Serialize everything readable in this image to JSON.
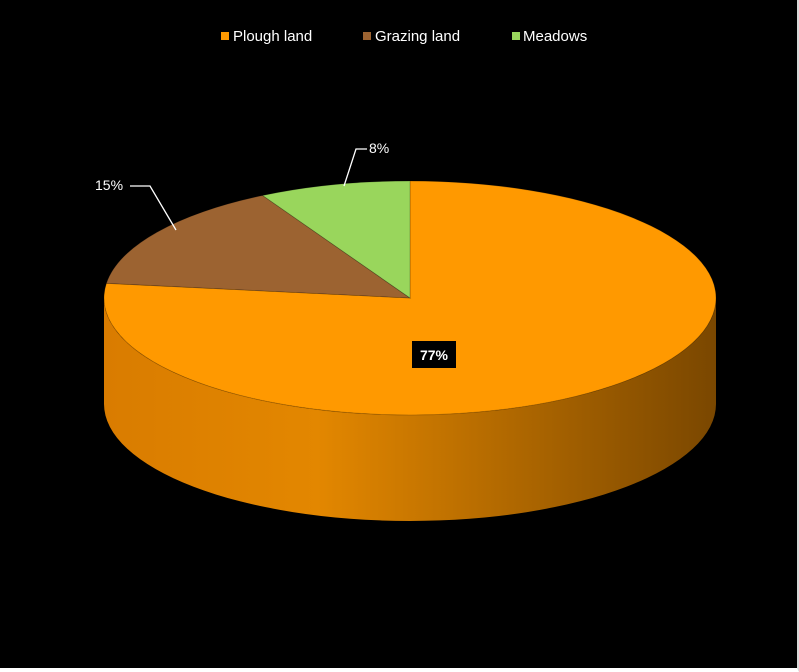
{
  "chart_data": {
    "type": "pie",
    "style": "3d",
    "title": "",
    "categories": [
      "Plough land",
      "Grazing land",
      "Meadows"
    ],
    "values": [
      77,
      15,
      8
    ],
    "labels": [
      "77%",
      "15%",
      "8%"
    ],
    "colors": [
      "#ff9900",
      "#9c6331",
      "#99d65c"
    ],
    "legend": "top",
    "background": "#000000"
  }
}
